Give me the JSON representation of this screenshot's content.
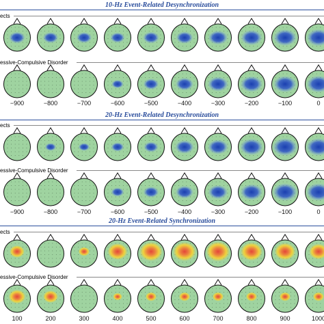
{
  "panels": [
    {
      "title": "10-Hz Event-Related Desynchronization",
      "groups": [
        {
          "label": "ects",
          "rows": "top"
        },
        {
          "label": "essive-Compulsive Disorder",
          "rows": "bottom"
        }
      ],
      "time_labels": [
        "−900",
        "−800",
        "−700",
        "−600",
        "−500",
        "−400",
        "−300",
        "−200",
        "−100",
        "0"
      ]
    },
    {
      "title": "20-Hz Event-Related Desynchronization",
      "groups": [
        {
          "label": "ects",
          "rows": "top"
        },
        {
          "label": "essive-Compulsive Disorder",
          "rows": "bottom"
        }
      ],
      "time_labels": [
        "−900",
        "−800",
        "−700",
        "−600",
        "−500",
        "−400",
        "−300",
        "−200",
        "−100",
        "0"
      ]
    },
    {
      "title": "20-Hz Event-Related Synchronization",
      "groups": [
        {
          "label": "ects",
          "rows": "top"
        },
        {
          "label": "essive-Compulsive Disorder",
          "rows": "bottom"
        }
      ],
      "time_labels": [
        "100",
        "200",
        "300",
        "400",
        "500",
        "600",
        "700",
        "800",
        "900",
        "1000"
      ]
    }
  ],
  "colors": {
    "scalp": "#9fd3a0",
    "title": "#2a4d9c",
    "desync_blue": "#2f55c8",
    "sync_red": "#e4463a",
    "sync_yellow": "#f7d233"
  },
  "maps": {
    "p1_top": [
      0.5,
      0.45,
      0.45,
      0.4,
      0.5,
      0.55,
      0.7,
      0.8,
      0.9,
      0.95
    ],
    "p1_bottom": [
      0,
      0,
      0,
      0.25,
      0.45,
      0.6,
      0.75,
      0.85,
      0.9,
      0.95
    ],
    "p2_top": [
      0,
      0.2,
      0.2,
      0.3,
      0.4,
      0.65,
      0.75,
      0.9,
      1.0,
      1.0
    ],
    "p2_bottom": [
      0,
      0,
      0,
      0.3,
      0.45,
      0.6,
      0.7,
      0.85,
      1.0,
      1.0
    ],
    "p3_top": [
      0.5,
      0,
      0.3,
      0.75,
      0.9,
      0.9,
      0.95,
      0.85,
      0.8,
      0.7
    ],
    "p3_bottom": [
      0.6,
      0.5,
      0,
      0.2,
      0.3,
      0.3,
      0.3,
      0.3,
      0.3,
      0.3
    ]
  }
}
